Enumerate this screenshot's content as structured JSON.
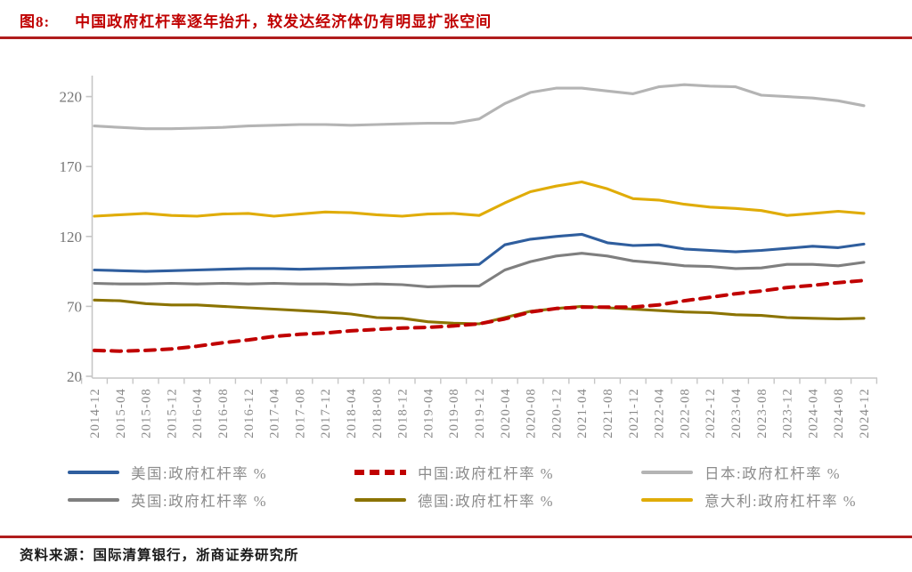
{
  "header": {
    "figure_label": "图8:",
    "title": "中国政府杠杆率逐年抬升，较发达经济体仍有明显扩张空间"
  },
  "footer": {
    "source_label": "资料来源：",
    "source_text": "国际清算银行，浙商证券研究所"
  },
  "theme": {
    "accent_red": "#c00000",
    "axis_line_gray": "#c6c6c6",
    "axis_label_gray": "#7f7f7f",
    "legend_text_gray": "#8c8c8c"
  },
  "chart_data": {
    "type": "line",
    "title": "",
    "xlabel": "",
    "ylabel": "",
    "ylim": [
      20,
      235
    ],
    "yticks": [
      20,
      70,
      120,
      170,
      220
    ],
    "grid": false,
    "legend_position": "bottom",
    "categories": [
      "2014-12",
      "2015-04",
      "2015-08",
      "2015-12",
      "2016-04",
      "2016-08",
      "2016-12",
      "2017-04",
      "2017-08",
      "2017-12",
      "2018-04",
      "2018-08",
      "2018-12",
      "2019-04",
      "2019-08",
      "2019-12",
      "2020-04",
      "2020-08",
      "2020-12",
      "2021-04",
      "2021-08",
      "2021-12",
      "2022-04",
      "2022-08",
      "2022-12",
      "2023-04",
      "2023-08",
      "2023-12",
      "2024-04",
      "2024-08",
      "2024-12"
    ],
    "series": [
      {
        "key": "us",
        "name": "美国:政府杠杆率 %",
        "color": "#2f5e9e",
        "dash": false,
        "values": [
          96,
          95.5,
          95,
          95.5,
          96,
          96.5,
          97,
          97,
          96.5,
          97,
          97.5,
          98,
          98.5,
          99,
          99.5,
          100,
          114,
          118,
          120,
          121.5,
          115.5,
          113.5,
          114,
          111,
          110,
          109,
          110,
          111.5,
          113,
          112,
          114.5
        ]
      },
      {
        "key": "china",
        "name": "中国:政府杠杆率 %",
        "color": "#c00000",
        "dash": true,
        "values": [
          38.5,
          38,
          38.5,
          39.5,
          41.5,
          44,
          46,
          48.5,
          50,
          51,
          52.5,
          53.5,
          54.5,
          55,
          56,
          57.5,
          61,
          66,
          68.5,
          69.5,
          69.5,
          69.5,
          71,
          74,
          76.5,
          79,
          81,
          83.5,
          85,
          87,
          88.5
        ]
      },
      {
        "key": "japan",
        "name": "日本:政府杠杆率 %",
        "color": "#b4b4b4",
        "dash": false,
        "values": [
          199,
          198,
          197,
          197,
          197.5,
          198,
          199,
          199.5,
          200,
          200,
          199.5,
          200,
          200.5,
          201,
          201,
          204,
          215,
          223,
          226,
          226,
          224,
          222,
          227,
          228.5,
          227.5,
          227,
          221,
          220,
          219,
          217,
          213.5
        ]
      },
      {
        "key": "uk",
        "name": "英国:政府杠杆率 %",
        "color": "#7f7f7f",
        "dash": false,
        "values": [
          86.5,
          86,
          86,
          86.5,
          86,
          86.5,
          86,
          86.5,
          86,
          86,
          85.5,
          86,
          85.5,
          84,
          84.5,
          84.5,
          96,
          102,
          106,
          108,
          106,
          102.5,
          101,
          99,
          98.5,
          97,
          97.5,
          100,
          100,
          99,
          101.5
        ]
      },
      {
        "key": "germany",
        "name": "德国:政府杠杆率 %",
        "color": "#8b7300",
        "dash": false,
        "values": [
          74.5,
          74,
          72,
          71,
          71,
          70,
          69,
          68,
          67,
          66,
          64.5,
          62,
          61.5,
          59,
          58,
          57.5,
          62,
          66.5,
          68.5,
          70,
          69,
          68,
          67,
          66,
          65.5,
          64,
          63.5,
          62,
          61.5,
          61,
          61.5
        ]
      },
      {
        "key": "italy",
        "name": "意大利:政府杠杆率 %",
        "color": "#e0ac08",
        "dash": false,
        "values": [
          134.5,
          135.5,
          136.5,
          135,
          134.5,
          136,
          136.5,
          134.5,
          136,
          137.5,
          137,
          135.5,
          134.5,
          136,
          136.5,
          135,
          144,
          152,
          156,
          159,
          154,
          147,
          146,
          143,
          141,
          140,
          138.5,
          135,
          136.5,
          138,
          136.5
        ]
      }
    ],
    "legend_order": [
      "us",
      "china",
      "japan",
      "uk",
      "germany",
      "italy"
    ],
    "draw_order": [
      "japan",
      "italy",
      "uk",
      "us",
      "germany",
      "china"
    ]
  }
}
